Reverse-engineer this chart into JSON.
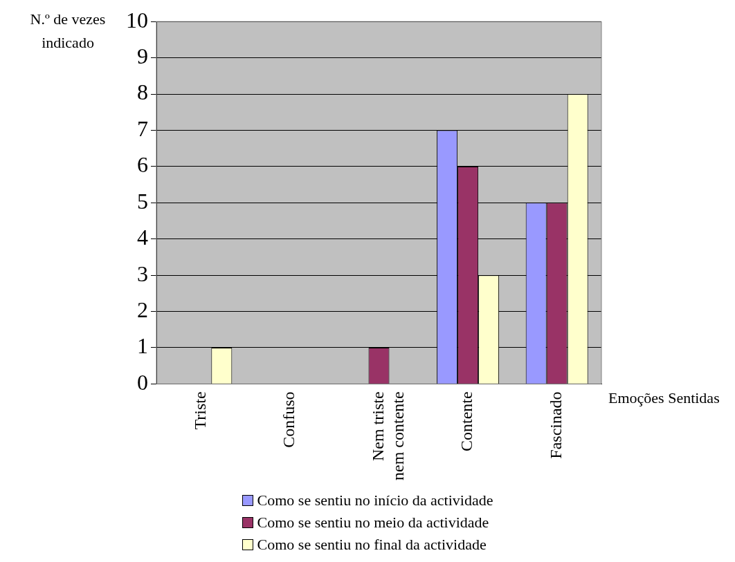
{
  "chart_data": {
    "type": "bar",
    "xlabel": "Emoções Sentidas",
    "ylabel": "N.º de vezes indicado",
    "categories": [
      "Triste",
      "Confuso",
      "Nem triste nem contente",
      "Contente",
      "Fascinado"
    ],
    "series": [
      {
        "name": "Como se sentiu no início da actividade",
        "color": "#9999ff",
        "values": [
          0,
          0,
          0,
          7,
          5
        ]
      },
      {
        "name": "Como se sentiu no meio da actividade",
        "color": "#993366",
        "values": [
          0,
          0,
          1,
          6,
          5
        ]
      },
      {
        "name": "Como se sentiu no final da actividade",
        "color": "#ffffcc",
        "values": [
          1,
          0,
          0,
          3,
          8
        ]
      }
    ],
    "ylim": [
      0,
      10
    ],
    "yticks": [
      0,
      1,
      2,
      3,
      4,
      5,
      6,
      7,
      8,
      9,
      10
    ],
    "grid": "y",
    "legend": "bottom"
  }
}
